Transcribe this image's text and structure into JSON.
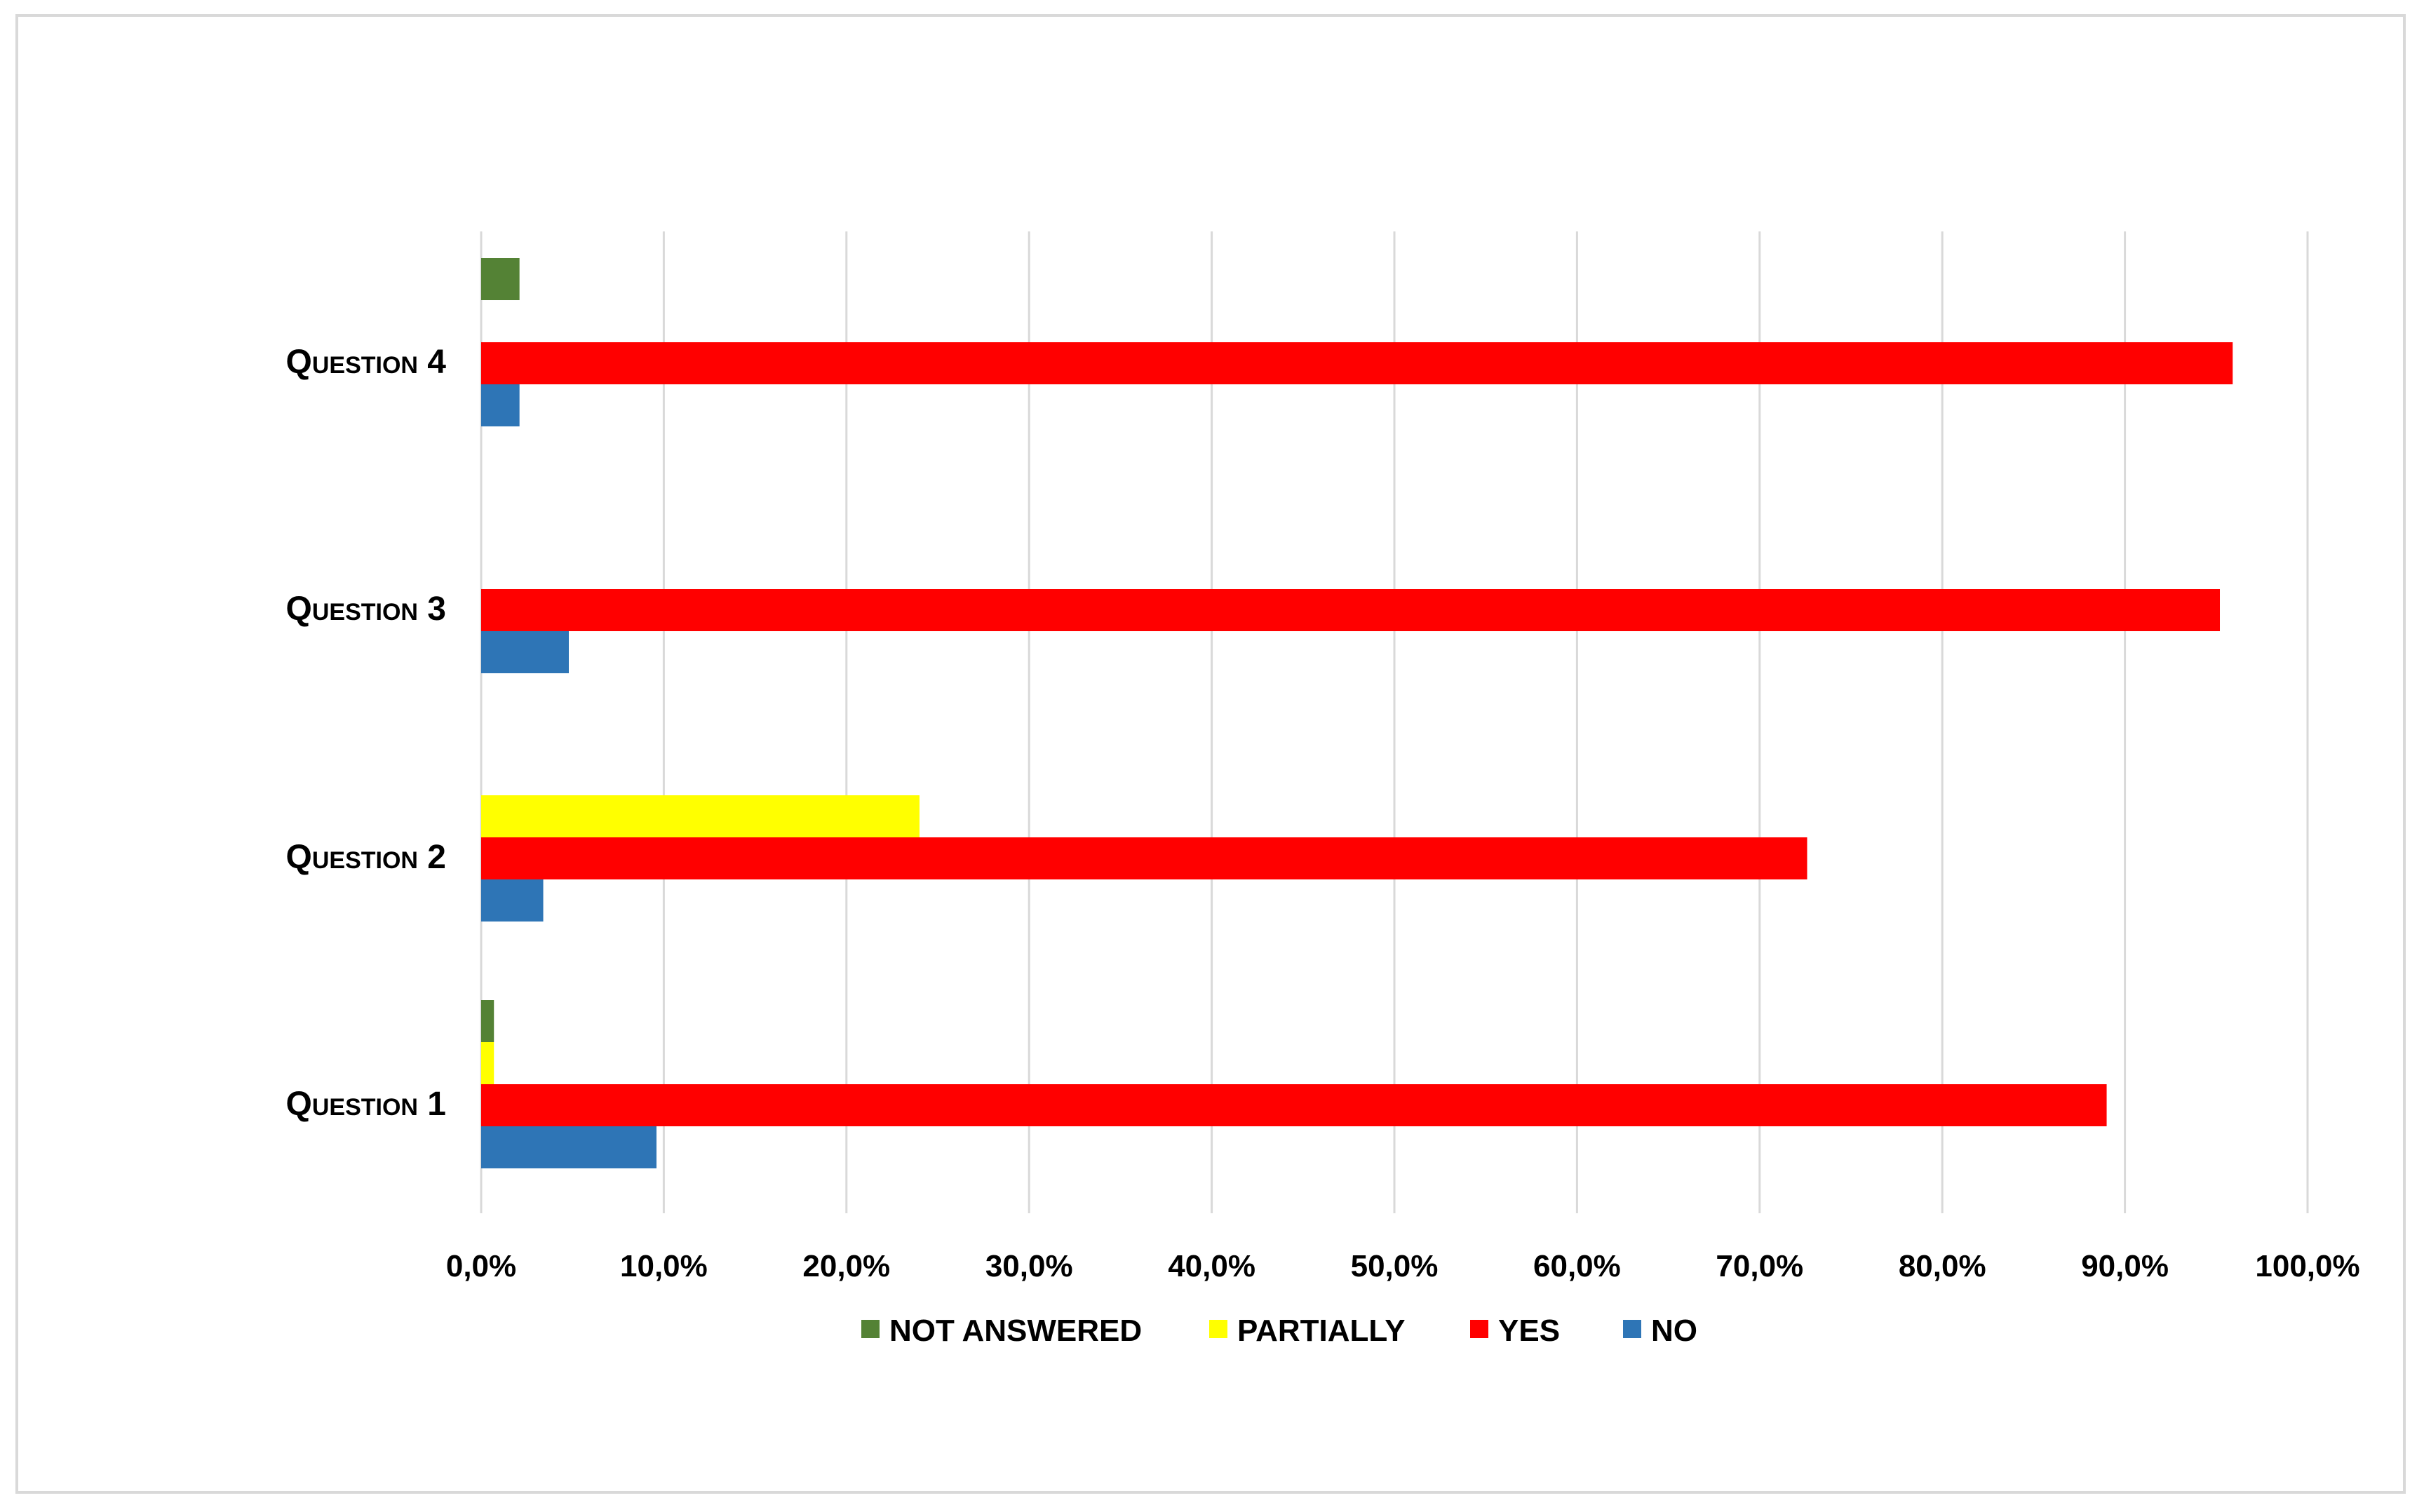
{
  "chart_data": {
    "type": "bar",
    "orientation": "horizontal",
    "categories": [
      "Question 1",
      "Question 2",
      "Question 3",
      "Question 4"
    ],
    "series": [
      {
        "name": "NOT ANSWERED",
        "color": "#548235",
        "values": [
          0.7,
          0.0,
          0.0,
          2.1
        ]
      },
      {
        "name": "PARTIALLY",
        "color": "#FFFF00",
        "values": [
          0.7,
          24.0,
          0.0,
          0.0
        ]
      },
      {
        "name": "YES",
        "color": "#FF0000",
        "values": [
          89.0,
          72.6,
          95.2,
          95.9
        ]
      },
      {
        "name": "NO",
        "color": "#2E75B6",
        "values": [
          9.6,
          3.4,
          4.8,
          2.1
        ]
      }
    ],
    "xlim": [
      0,
      100
    ],
    "xticks": [
      "0,0%",
      "10,0%",
      "20,0%",
      "30,0%",
      "40,0%",
      "50,0%",
      "60,0%",
      "70,0%",
      "80,0%",
      "90,0%",
      "100,0%"
    ],
    "grid": "vertical",
    "legend_position": "bottom",
    "title": "",
    "xlabel": "",
    "ylabel": ""
  }
}
